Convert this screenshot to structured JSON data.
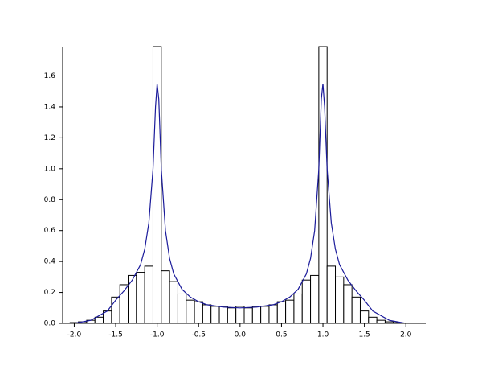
{
  "chart_data": {
    "type": "histogram",
    "bins": [
      -2.05,
      -1.95,
      -1.85,
      -1.75,
      -1.65,
      -1.55,
      -1.45,
      -1.35,
      -1.25,
      -1.15,
      -1.05,
      -0.95,
      -0.85,
      -0.75,
      -0.65,
      -0.55,
      -0.45,
      -0.35,
      -0.25,
      -0.15,
      -0.05,
      0.05,
      0.15,
      0.25,
      0.35,
      0.45,
      0.55,
      0.65,
      0.75,
      0.85,
      0.95,
      1.05,
      1.15,
      1.25,
      1.35,
      1.45,
      1.55,
      1.65,
      1.75,
      1.85,
      1.95,
      2.05
    ],
    "values": [
      0.005,
      0.01,
      0.02,
      0.04,
      0.08,
      0.17,
      0.25,
      0.31,
      0.33,
      0.37,
      1.79,
      0.34,
      0.27,
      0.19,
      0.15,
      0.14,
      0.12,
      0.11,
      0.11,
      0.1,
      0.11,
      0.1,
      0.11,
      0.11,
      0.12,
      0.14,
      0.15,
      0.19,
      0.28,
      0.31,
      1.79,
      0.37,
      0.3,
      0.25,
      0.17,
      0.08,
      0.04,
      0.02,
      0.01,
      0.005,
      0.002
    ],
    "color": "#000000",
    "curve": {
      "color": "#1a1a9a",
      "x": [
        -2.0,
        -1.8,
        -1.6,
        -1.5,
        -1.4,
        -1.3,
        -1.2,
        -1.15,
        -1.1,
        -1.05,
        -1.02,
        -1.0,
        -0.98,
        -0.95,
        -0.9,
        -0.85,
        -0.8,
        -0.7,
        -0.6,
        -0.5,
        -0.4,
        -0.2,
        0.0,
        0.2,
        0.4,
        0.5,
        0.6,
        0.7,
        0.8,
        0.85,
        0.9,
        0.95,
        0.98,
        1.0,
        1.02,
        1.05,
        1.1,
        1.15,
        1.2,
        1.3,
        1.4,
        1.5,
        1.6,
        1.8,
        2.0
      ],
      "values": [
        0.0,
        0.02,
        0.08,
        0.15,
        0.21,
        0.28,
        0.38,
        0.48,
        0.65,
        1.0,
        1.4,
        1.55,
        1.45,
        1.0,
        0.6,
        0.42,
        0.32,
        0.22,
        0.17,
        0.14,
        0.12,
        0.105,
        0.1,
        0.105,
        0.12,
        0.14,
        0.17,
        0.22,
        0.32,
        0.42,
        0.6,
        1.0,
        1.45,
        1.55,
        1.4,
        1.0,
        0.65,
        0.48,
        0.38,
        0.28,
        0.21,
        0.15,
        0.08,
        0.02,
        0.0
      ]
    },
    "xlim": [
      -2.14,
      2.24
    ],
    "ylim": [
      0,
      1.79
    ],
    "xticks": [
      {
        "value": -2,
        "label": "-2.0"
      },
      -1.5,
      {
        "value": -1,
        "label": "-1.0"
      },
      -0.5,
      {
        "value": 0,
        "label": "0.0"
      },
      0.5,
      {
        "value": 1,
        "label": "1.0"
      },
      1.5,
      {
        "value": 2,
        "label": "2.0"
      }
    ],
    "yticks": [
      {
        "value": 0,
        "label": "0.0"
      },
      0.2,
      0.4,
      0.6,
      0.8,
      {
        "value": 1,
        "label": "1.0"
      },
      1.2,
      1.4,
      1.6
    ]
  }
}
